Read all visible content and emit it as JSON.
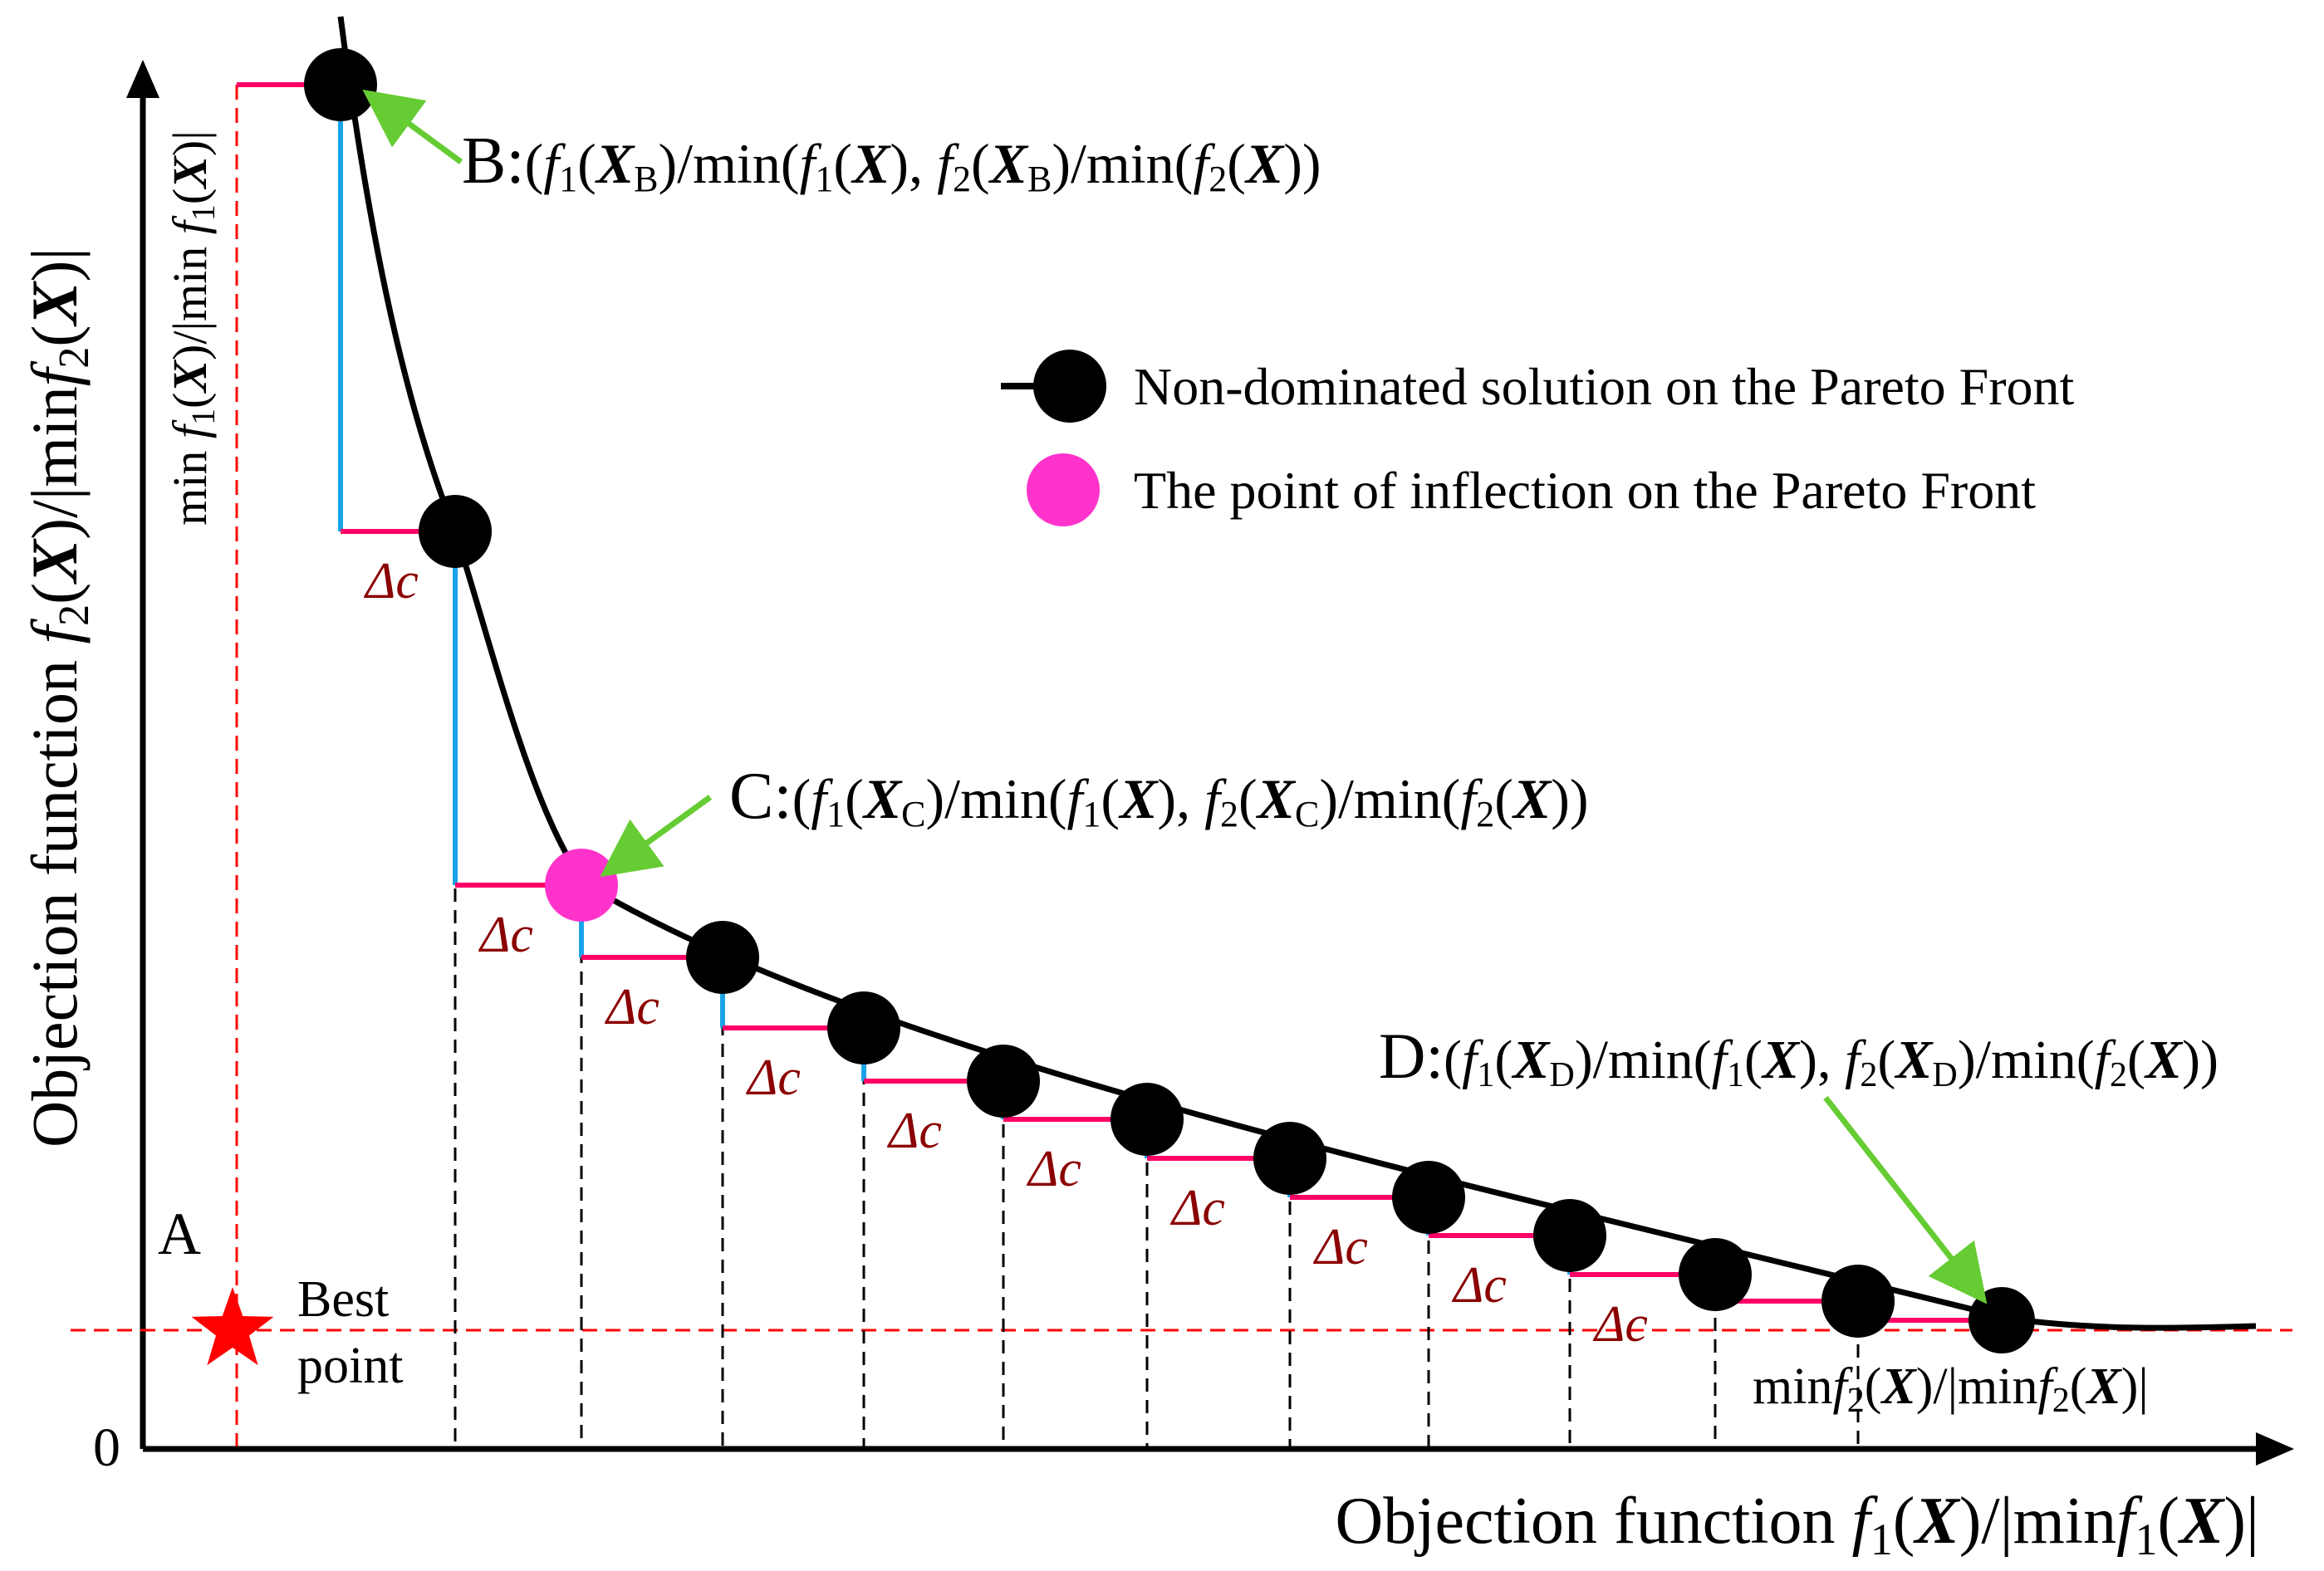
{
  "diagram": {
    "origin_label": "0",
    "x_axis_label": {
      "pre": "Objection function ",
      "f": "f",
      "sub": "1",
      "open": "(",
      "X": "X",
      "mid": ")/|min",
      "f2": "f",
      "sub2": "1",
      "open2": "(",
      "X2": "X",
      "close": ")|"
    },
    "y_axis_label": {
      "pre": "Objection function ",
      "f": "f",
      "sub": "2",
      "open": "(",
      "X": "X",
      "mid": ")/|min",
      "f2": "f",
      "sub2": "2",
      "open2": "(",
      "X2": "X",
      "close": ")|"
    },
    "y_min_label": {
      "pre": "min ",
      "f": "f",
      "sub": "1",
      "open": "(",
      "X": "X",
      "mid": ")/|min ",
      "f2": "f",
      "sub2": "1",
      "open2": "(",
      "X2": "X",
      "close": ")|"
    },
    "x_min_label": {
      "pre": "min",
      "f": "f",
      "sub": "2",
      "open": "(",
      "X": "X",
      "mid": ")/|min",
      "f2": "f",
      "sub2": "2",
      "open2": "(",
      "X2": "X",
      "close": ")|"
    },
    "point_A": {
      "letter": "A",
      "best_1": "Best",
      "best_2": "point"
    },
    "point_B": {
      "letter": "B:",
      "sub": "B"
    },
    "point_C": {
      "letter": "C:",
      "sub": "C"
    },
    "point_D": {
      "letter": "D:",
      "sub": "D"
    },
    "delta_c": "Δc",
    "legend": {
      "nondominated": "Non-dominated solution on the Pareto Front",
      "inflection": "The point of inflection on the Pareto Front"
    },
    "colors": {
      "curve": "#000000",
      "point": "#000000",
      "inflection": "#ff33cc",
      "horizontal_step": "#ff0066",
      "vertical_step": "#1aa3e8",
      "reference_line": "#ff0000",
      "arrow": "#66cc33",
      "delta_label": "#8b0000"
    }
  }
}
